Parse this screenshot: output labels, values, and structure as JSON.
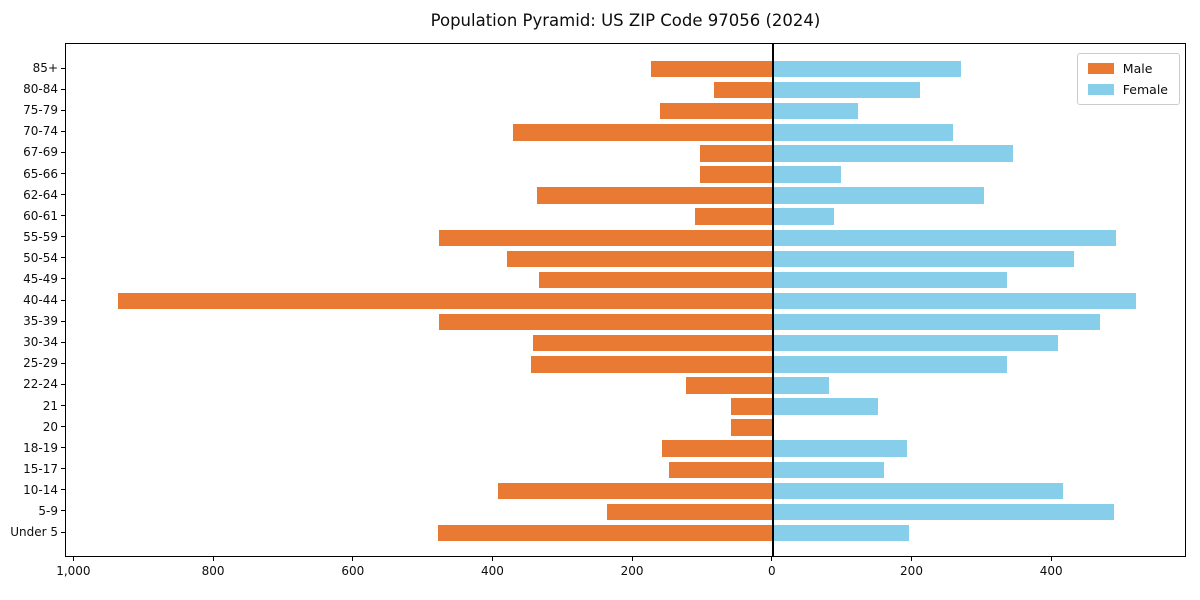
{
  "title": "Population Pyramid: US ZIP Code 97056 (2024)",
  "legend": {
    "male_label": "Male",
    "female_label": "Female",
    "position": "upper right"
  },
  "colors": {
    "male": "#e87a33",
    "female": "#87ceeb",
    "axis": "#000000",
    "legend_border": "#cccccc",
    "background": "#ffffff"
  },
  "chart_data": {
    "type": "bar",
    "subtype": "population-pyramid",
    "orientation": "horizontal",
    "title": "Population Pyramid: US ZIP Code 97056 (2024)",
    "categories": [
      "85+",
      "80-84",
      "75-79",
      "70-74",
      "67-69",
      "65-66",
      "62-64",
      "60-61",
      "55-59",
      "50-54",
      "45-49",
      "40-44",
      "35-39",
      "30-34",
      "25-29",
      "22-24",
      "21",
      "20",
      "18-19",
      "15-17",
      "10-14",
      "5-9",
      "Under 5"
    ],
    "series": [
      {
        "name": "Male",
        "side": "left",
        "color": "#e87a33",
        "values": [
          175,
          85,
          162,
          372,
          105,
          104,
          337,
          112,
          478,
          380,
          335,
          938,
          478,
          344,
          346,
          125,
          60,
          60,
          159,
          149,
          393,
          237,
          479
        ]
      },
      {
        "name": "Female",
        "side": "right",
        "color": "#87ceeb",
        "values": [
          270,
          211,
          122,
          258,
          344,
          98,
          302,
          88,
          492,
          432,
          336,
          520,
          468,
          409,
          336,
          81,
          151,
          0,
          192,
          159,
          415,
          489,
          195
        ]
      }
    ],
    "x_axis": {
      "xlim": [
        -1012,
        593
      ],
      "ticks": [
        {
          "value": -1000,
          "label": "1,000"
        },
        {
          "value": -800,
          "label": "800"
        },
        {
          "value": -600,
          "label": "600"
        },
        {
          "value": -400,
          "label": "400"
        },
        {
          "value": -200,
          "label": "200"
        },
        {
          "value": 0,
          "label": "0"
        },
        {
          "value": 200,
          "label": "200"
        },
        {
          "value": 400,
          "label": "400"
        }
      ],
      "zero_line": true
    },
    "grid": false,
    "legend_position": "upper right"
  }
}
